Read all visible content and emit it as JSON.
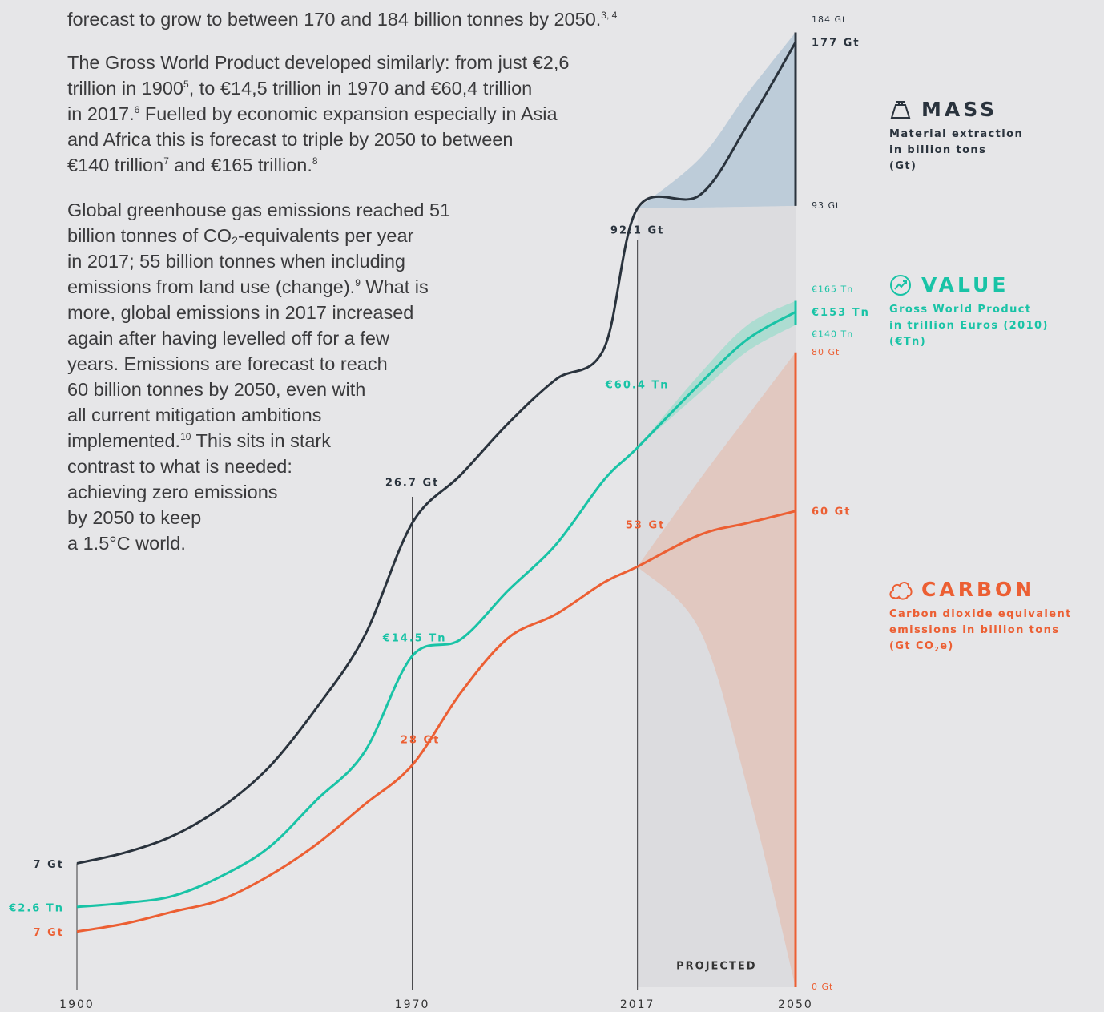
{
  "text": {
    "paragraphs": [
      {
        "lines": [
          [
            "forecast to grow to between 170 and 184 billion tonnes by 2050.",
            {
              "sup": "3, 4"
            }
          ]
        ]
      },
      {
        "lines": [
          [
            "The Gross World Product developed similarly: from just €2,6"
          ],
          [
            "trillion in 1900",
            {
              "sup": "5"
            },
            ", to €14,5 trillion in 1970 and  €60,4  trillion"
          ],
          [
            "in 2017.",
            {
              "sup": "6"
            },
            " Fuelled by economic expansion especially in Asia"
          ],
          [
            "and Africa this is forecast to triple by 2050 to between"
          ],
          [
            "€140 trillion",
            {
              "sup": "7"
            },
            " and €165 trillion.",
            {
              "sup": "8"
            }
          ]
        ]
      },
      {
        "lines": [
          [
            "Global greenhouse gas emissions reached 51"
          ],
          [
            "billion tonnes of CO",
            {
              "sub": "2"
            },
            "-equivalents per year"
          ],
          [
            "in 2017; 55 billion tonnes when including"
          ],
          [
            "emissions from land use (change).",
            {
              "sup": "9"
            },
            " What is"
          ],
          [
            "more, global emissions in 2017 increased"
          ],
          [
            "again after having levelled off for a few"
          ],
          [
            "years. Emissions are forecast to reach"
          ],
          [
            "60 billion tonnes by 2050, even with"
          ],
          [
            "all current mitigation ambitions"
          ],
          [
            "implemented.",
            {
              "sup": "10"
            },
            " This sits in stark"
          ],
          [
            "contrast to what is needed:"
          ],
          [
            "achieving zero emissions"
          ],
          [
            "by 2050 to keep"
          ],
          [
            "a 1.5°C world."
          ]
        ]
      }
    ]
  },
  "chart_data": {
    "type": "line",
    "x": [
      1900,
      1910,
      1920,
      1930,
      1940,
      1950,
      1960,
      1970,
      1980,
      1990,
      2000,
      2010,
      2017,
      2030,
      2040,
      2050
    ],
    "xlim": [
      1900,
      2050
    ],
    "xticks": [
      1900,
      1970,
      2017,
      2050
    ],
    "projected_label": "PROJECTED",
    "series": [
      {
        "name": "MASS",
        "color": "#2a333d",
        "band_color": "#b7c9d8",
        "scale": "log",
        "ylim": [
          4.3,
          200
        ],
        "values": [
          7,
          7.3,
          7.8,
          8.7,
          10.2,
          12.9,
          17.1,
          26.7,
          32.2,
          39.5,
          47,
          53,
          92.1,
          97,
          128,
          177
        ],
        "value_labels": [
          "7 Gt",
          null,
          null,
          null,
          null,
          null,
          null,
          "26.7 Gt",
          null,
          null,
          null,
          null,
          "92.1 Gt",
          null,
          null,
          "177 Gt"
        ],
        "high": [
          null,
          null,
          null,
          null,
          null,
          null,
          null,
          null,
          null,
          null,
          null,
          null,
          92.1,
          112,
          145,
          184
        ],
        "low": [
          null,
          null,
          null,
          null,
          null,
          null,
          null,
          null,
          null,
          null,
          null,
          null,
          92.1,
          92.4,
          92.7,
          93
        ],
        "high_labels": [
          null,
          null,
          null,
          null,
          null,
          null,
          null,
          null,
          null,
          null,
          null,
          null,
          null,
          null,
          null,
          "184 Gt"
        ],
        "low_labels": [
          null,
          null,
          null,
          null,
          null,
          null,
          null,
          null,
          null,
          null,
          null,
          null,
          null,
          null,
          null,
          "93 Gt"
        ],
        "description": [
          [
            "Material extraction"
          ],
          [
            "in billion tons"
          ],
          [
            "(Gt)"
          ]
        ]
      },
      {
        "name": "VALUE",
        "color": "#19c3a6",
        "band_color": "#a5dccf",
        "scale": "log",
        "ylim": [
          1.5,
          1200
        ],
        "values": [
          2.6,
          2.67,
          2.8,
          3.2,
          3.9,
          5.4,
          7.5,
          14.5,
          16.2,
          22.7,
          31.1,
          48.4,
          60.4,
          93.5,
          127,
          153
        ],
        "value_labels": [
          "€2.6 Tn",
          null,
          null,
          null,
          null,
          null,
          null,
          "€14.5 Tn",
          null,
          null,
          null,
          null,
          "€60.4 Tn",
          null,
          null,
          "€153 Tn"
        ],
        "high": [
          null,
          null,
          null,
          null,
          null,
          null,
          null,
          null,
          null,
          null,
          null,
          null,
          60.4,
          100,
          140,
          165
        ],
        "low": [
          null,
          null,
          null,
          null,
          null,
          null,
          null,
          null,
          null,
          null,
          null,
          null,
          60.4,
          88,
          117,
          140
        ],
        "high_labels": [
          null,
          null,
          null,
          null,
          null,
          null,
          null,
          null,
          null,
          null,
          null,
          null,
          null,
          null,
          null,
          "€165 Tn"
        ],
        "low_labels": [
          null,
          null,
          null,
          null,
          null,
          null,
          null,
          null,
          null,
          null,
          null,
          null,
          null,
          null,
          null,
          "€140 Tn"
        ],
        "description": [
          [
            "Gross World Product"
          ],
          [
            "in trillion Euros (2010)"
          ],
          [
            "(€Tn)"
          ]
        ]
      },
      {
        "name": "CARBON",
        "color": "#ec5f33",
        "band_color": "#e2c4bb",
        "scale": "linear",
        "ylim": [
          0,
          123
        ],
        "values": [
          7,
          8,
          9.5,
          11,
          14,
          18,
          23,
          28,
          37,
          44,
          47,
          51,
          53,
          57,
          58.5,
          60
        ],
        "value_labels": [
          "7 Gt",
          null,
          null,
          null,
          null,
          null,
          null,
          "28 Gt",
          null,
          null,
          null,
          null,
          "53 Gt",
          null,
          null,
          "60 Gt"
        ],
        "high": [
          null,
          null,
          null,
          null,
          null,
          null,
          null,
          null,
          null,
          null,
          null,
          null,
          53,
          64,
          72,
          80
        ],
        "low": [
          null,
          null,
          null,
          null,
          null,
          null,
          null,
          null,
          null,
          null,
          null,
          null,
          53,
          45,
          25,
          0
        ],
        "high_labels": [
          null,
          null,
          null,
          null,
          null,
          null,
          null,
          null,
          null,
          null,
          null,
          null,
          null,
          null,
          null,
          "80 Gt"
        ],
        "low_labels": [
          null,
          null,
          null,
          null,
          null,
          null,
          null,
          null,
          null,
          null,
          null,
          null,
          null,
          null,
          null,
          "0 Gt"
        ],
        "description": [
          [
            "Carbon dioxide equivalent"
          ],
          [
            "emissions in billion tons"
          ],
          [
            "(Gt CO",
            {
              "sub": "2"
            },
            "e)"
          ]
        ]
      }
    ]
  }
}
